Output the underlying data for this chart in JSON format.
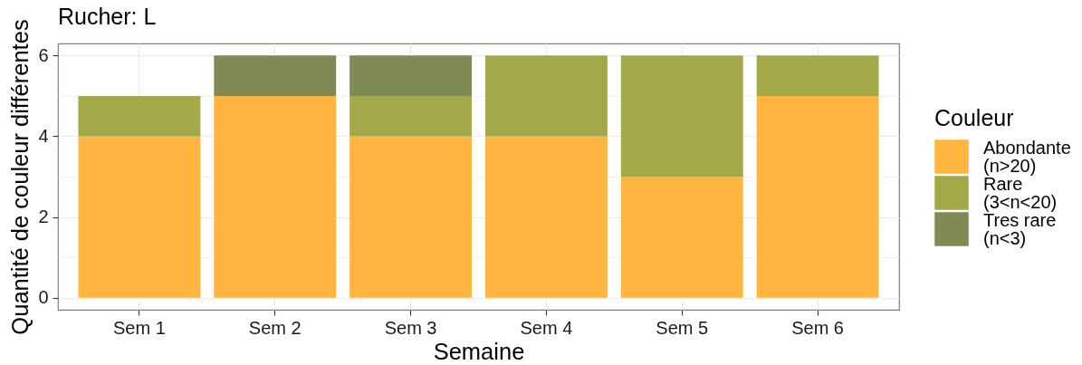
{
  "chart_data": {
    "type": "bar",
    "title": "Rucher: L",
    "xlabel": "Semaine",
    "ylabel": "Quantité de couleur différentes",
    "legend_title": "Couleur",
    "categories": [
      "Sem 1",
      "Sem 2",
      "Sem 3",
      "Sem 4",
      "Sem 5",
      "Sem 6"
    ],
    "series": [
      {
        "name": "Abondante\n(n>20)",
        "color": "#ffb540",
        "values": [
          4,
          5,
          4,
          4,
          3,
          5
        ]
      },
      {
        "name": "Rare\n(3<n<20)",
        "color": "#a3a848",
        "values": [
          1,
          0,
          1,
          2,
          3,
          1
        ]
      },
      {
        "name": "Tres rare\n(n<3)",
        "color": "#808a54",
        "values": [
          0,
          1,
          1,
          0,
          0,
          0
        ]
      }
    ],
    "stacked": true,
    "ylim": [
      -0.3,
      6.3
    ],
    "yticks": [
      0,
      2,
      4,
      6
    ],
    "grid": true,
    "legend": "right"
  }
}
